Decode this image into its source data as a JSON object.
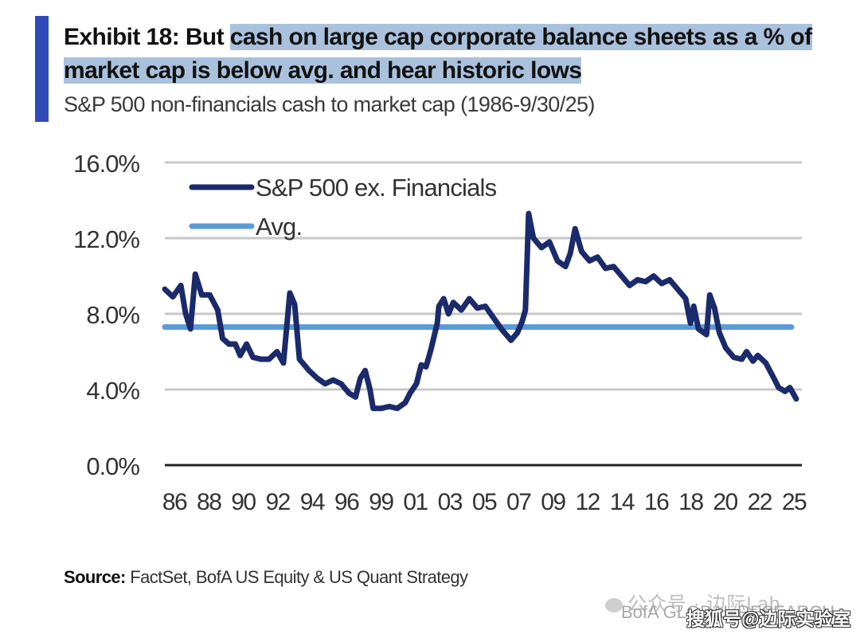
{
  "header": {
    "title_prefix": "Exhibit 18: But ",
    "title_highlight": "cash on large cap corporate balance sheets as a % of market cap is below avg. and hear historic lows",
    "subtitle": "S&P 500 non-financials cash to market cap (1986-9/30/25)"
  },
  "footer": {
    "source_label": "Source:",
    "source_text": " FactSet, BofA US Equity & US Quant Strategy",
    "watermark_wechat": "公众号 · 边际Lab",
    "watermark_bofa": "BofA GLOBAL RESEARCH",
    "watermark_sohu": "搜狐号@边际实验室"
  },
  "colors": {
    "accent_bar": "#2f4bb8",
    "title_highlight": "#a9c1dc",
    "series": "#1b2a6b",
    "average": "#5b9bd5",
    "grid": "#c8c8c8",
    "axis": "#222222"
  },
  "chart_data": {
    "type": "line",
    "title": "Exhibit 18: But cash on large cap corporate balance sheets as a % of market cap is below avg. and hear historic lows",
    "subtitle": "S&P 500 non-financials cash to market cap (1986-9/30/25)",
    "xlabel": "",
    "ylabel": "",
    "xlim": [
      1986,
      2025.75
    ],
    "ylim": [
      0,
      16
    ],
    "grid": true,
    "legend_position": "top-left",
    "y_ticks": [
      0,
      4,
      8,
      12,
      16
    ],
    "y_tick_labels": [
      "0.0%",
      "4.0%",
      "8.0%",
      "12.0%",
      "16.0%"
    ],
    "x_ticks": [
      1986,
      1988,
      1990,
      1992,
      1994,
      1996,
      1999,
      2001,
      2003,
      2005,
      2007,
      2009,
      2012,
      2014,
      2016,
      2018,
      2020,
      2022,
      2025
    ],
    "x_tick_labels": [
      "86",
      "88",
      "90",
      "92",
      "94",
      "96",
      "99",
      "01",
      "03",
      "05",
      "07",
      "09",
      "12",
      "14",
      "16",
      "18",
      "20",
      "22",
      "25"
    ],
    "series": [
      {
        "name": "S&P 500 ex. Financials",
        "x": [
          1986.0,
          1986.5,
          1987.0,
          1987.3,
          1987.6,
          1987.9,
          1988.3,
          1988.8,
          1989.3,
          1989.6,
          1990.0,
          1990.4,
          1990.7,
          1991.1,
          1991.5,
          1992.0,
          1992.5,
          1993.0,
          1993.4,
          1993.8,
          1994.1,
          1994.4,
          1995.0,
          1995.5,
          1996.0,
          1996.5,
          1997.0,
          1997.5,
          1997.9,
          1998.2,
          1998.5,
          1998.8,
          1999.0,
          1999.5,
          2000.0,
          2000.5,
          2001.0,
          2001.3,
          2001.7,
          2002.0,
          2002.3,
          2002.6,
          2003.0,
          2003.1,
          2003.4,
          2003.7,
          2004.0,
          2004.5,
          2005.0,
          2005.5,
          2006.0,
          2006.5,
          2007.0,
          2007.3,
          2007.6,
          2008.0,
          2008.3,
          2008.5,
          2008.7,
          2009.0,
          2009.5,
          2010.0,
          2010.5,
          2011.0,
          2011.3,
          2011.6,
          2012.0,
          2012.5,
          2013.0,
          2013.5,
          2014.0,
          2014.5,
          2015.0,
          2015.5,
          2016.0,
          2016.5,
          2017.0,
          2017.5,
          2018.0,
          2018.5,
          2018.8,
          2019.0,
          2019.3,
          2019.8,
          2020.0,
          2020.3,
          2020.6,
          2021.0,
          2021.5,
          2022.0,
          2022.3,
          2022.7,
          2023.0,
          2023.5,
          2024.0,
          2024.3,
          2024.7,
          2025.0,
          2025.4
        ],
        "values": [
          9.3,
          8.9,
          9.5,
          8.0,
          7.2,
          10.1,
          9.0,
          9.0,
          8.2,
          6.7,
          6.4,
          6.4,
          5.8,
          6.4,
          5.7,
          5.6,
          5.6,
          6.0,
          5.4,
          9.1,
          8.5,
          5.6,
          5.0,
          4.6,
          4.3,
          4.5,
          4.3,
          3.8,
          3.6,
          4.6,
          5.0,
          4.0,
          3.0,
          3.0,
          3.1,
          3.0,
          3.3,
          3.8,
          4.3,
          5.3,
          5.2,
          6.1,
          7.5,
          8.4,
          8.8,
          8.0,
          8.6,
          8.2,
          8.8,
          8.3,
          8.4,
          7.8,
          7.2,
          6.9,
          6.6,
          7.0,
          7.6,
          8.2,
          13.3,
          12.0,
          11.5,
          11.8,
          10.8,
          10.5,
          11.2,
          12.5,
          11.3,
          10.8,
          11.0,
          10.4,
          10.5,
          10.0,
          9.5,
          9.8,
          9.7,
          10.0,
          9.6,
          9.8,
          9.3,
          8.8,
          7.5,
          8.4,
          7.2,
          6.9,
          9.0,
          8.3,
          7.0,
          6.2,
          5.7,
          5.6,
          6.0,
          5.5,
          5.8,
          5.4,
          4.6,
          4.1,
          3.9,
          4.1,
          3.5
        ]
      },
      {
        "name": "Avg.",
        "x": [
          1986.0,
          2025.1
        ],
        "values": [
          7.3,
          7.3
        ]
      }
    ]
  }
}
